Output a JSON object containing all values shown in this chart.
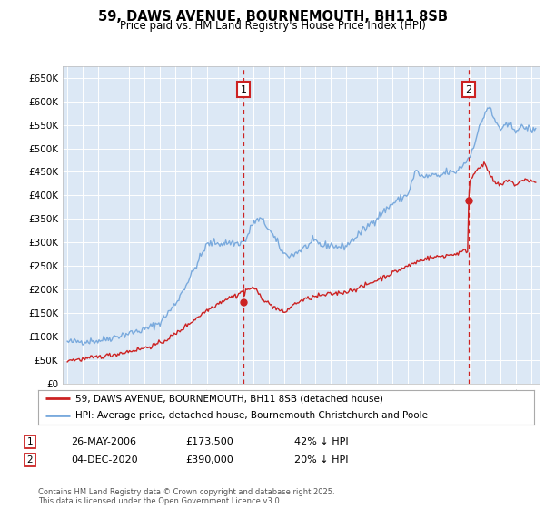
{
  "title": "59, DAWS AVENUE, BOURNEMOUTH, BH11 8SB",
  "subtitle": "Price paid vs. HM Land Registry's House Price Index (HPI)",
  "background_color": "#ffffff",
  "plot_bg_color": "#dce8f5",
  "hpi_color": "#7aaadd",
  "price_color": "#cc2222",
  "marker_box_color": "#cc2222",
  "vline_color": "#cc2222",
  "ylim": [
    0,
    675000
  ],
  "xlim_start": 1994.7,
  "xlim_end": 2025.5,
  "purchase1_date": 2006.38,
  "purchase1_price": 173500,
  "purchase2_date": 2020.92,
  "purchase2_price": 390000,
  "legend_line1": "59, DAWS AVENUE, BOURNEMOUTH, BH11 8SB (detached house)",
  "legend_line2": "HPI: Average price, detached house, Bournemouth Christchurch and Poole",
  "footer": "Contains HM Land Registry data © Crown copyright and database right 2025.\nThis data is licensed under the Open Government Licence v3.0.",
  "yticks": [
    0,
    50000,
    100000,
    150000,
    200000,
    250000,
    300000,
    350000,
    400000,
    450000,
    500000,
    550000,
    600000,
    650000
  ],
  "ytick_labels": [
    "£0",
    "£50K",
    "£100K",
    "£150K",
    "£200K",
    "£250K",
    "£300K",
    "£350K",
    "£400K",
    "£450K",
    "£500K",
    "£550K",
    "£600K",
    "£650K"
  ]
}
